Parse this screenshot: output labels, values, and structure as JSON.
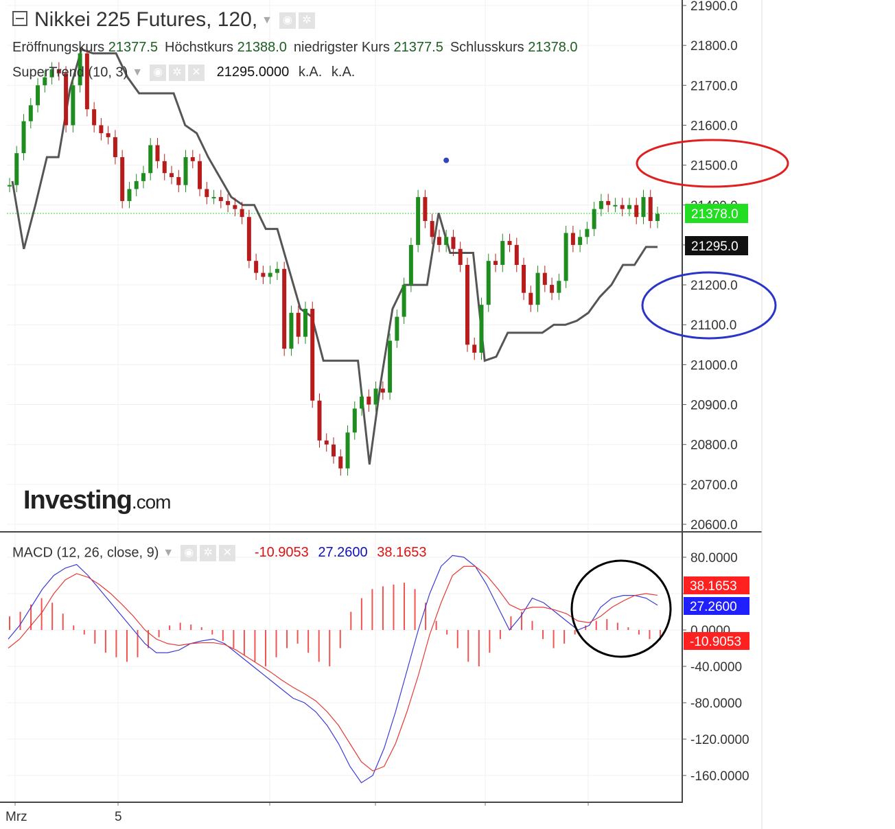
{
  "legend": {
    "title": "Nikkei 225 Futures, 120,",
    "open_label": "Eröffnungskurs",
    "open_value": "21377.5",
    "high_label": "Höchstkurs",
    "high_value": "21388.0",
    "low_label": "niedrigster Kurs",
    "low_value": "21377.5",
    "close_label": "Schlusskurs",
    "close_value": "21378.0",
    "supertrend_label": "SuperTrend (10, 3)",
    "supertrend_value": "21295.0000",
    "na1": "k.A.",
    "na2": "k.A.",
    "macd_label": "MACD (12, 26, close, 9)",
    "macd_hist": "-10.9053",
    "macd_line": "27.2600",
    "macd_signal": "38.1653"
  },
  "logo": {
    "main": "Investing",
    "suffix": ".com"
  },
  "icons": {
    "settings": "gear-icon",
    "visibility": "eye-icon",
    "remove": "close-icon",
    "menu": "chevron-down-icon"
  },
  "colors": {
    "up": "#1e8c1e",
    "down": "#b71c1c",
    "supertrend": "#555555",
    "macd": "#3b3bd6",
    "signal": "#e53935",
    "hist": "#ef5350",
    "last": "#22dd22"
  },
  "chart_data": [
    {
      "type": "candlestick",
      "title": "Nikkei 225 Futures, 120,",
      "ylim": [
        20600,
        21900
      ],
      "y_ticks": [
        20600,
        20700,
        20800,
        20900,
        21000,
        21100,
        21200,
        21300,
        21400,
        21500,
        21600,
        21700,
        21800,
        21900
      ],
      "x_tick_labels": [
        {
          "label": "Mrz",
          "index": 1
        },
        {
          "label": "5",
          "index": 23
        }
      ],
      "last_price": "21378.0",
      "supertrend_last": "21295.0",
      "candles_close": [
        21450,
        21530,
        21610,
        21650,
        21700,
        21720,
        21740,
        21730,
        21600,
        21700,
        21780,
        21640,
        21600,
        21580,
        21570,
        21520,
        21410,
        21440,
        21460,
        21480,
        21550,
        21510,
        21480,
        21470,
        21450,
        21520,
        21510,
        21440,
        21420,
        21420,
        21410,
        21400,
        21390,
        21370,
        21260,
        21230,
        21220,
        21230,
        21240,
        21040,
        21130,
        21070,
        21140,
        20910,
        20810,
        20800,
        20770,
        20740,
        20830,
        20890,
        20920,
        20900,
        20940,
        20930,
        21060,
        21120,
        21200,
        21300,
        21420,
        21360,
        21320,
        21300,
        21320,
        21290,
        21250,
        21050,
        21030,
        21150,
        21260,
        21250,
        21310,
        21300,
        21250,
        21180,
        21150,
        21230,
        21200,
        21180,
        21210,
        21330,
        21300,
        21320,
        21340,
        21390,
        21410,
        21400,
        21400,
        21390,
        21400,
        21370,
        21420,
        21360,
        21378
      ],
      "supertrend": [
        21460,
        21290,
        21400,
        21520,
        21520,
        21690,
        21790,
        21780,
        21780,
        21780,
        21720,
        21680,
        21680,
        21680,
        21680,
        21600,
        21580,
        21520,
        21470,
        21420,
        21400,
        21400,
        21340,
        21340,
        21240,
        21140,
        21120,
        21010,
        21010,
        21010,
        21010,
        20750,
        20960,
        21140,
        21200,
        21200,
        21200,
        21380,
        21280,
        21280,
        21280,
        21010,
        21020,
        21080,
        21080,
        21080,
        21080,
        21100,
        21100,
        21110,
        21130,
        21170,
        21200,
        21250,
        21250,
        21295,
        21295
      ],
      "supertrend_start_index": 0,
      "marker": {
        "x_index": 62,
        "y": 21512
      }
    },
    {
      "type": "line",
      "title": "MACD (12, 26, close, 9)",
      "ylim": [
        -175,
        100
      ],
      "y_ticks": [
        80,
        40,
        0,
        -40,
        -80,
        -120,
        -160
      ],
      "y_tick_labels": [
        "80.0000",
        "",
        "0.0000",
        "-40.0000",
        "-80.0000",
        "-120.0000",
        "-160.0000"
      ],
      "series": [
        {
          "name": "MACD",
          "values": [
            -10,
            5,
            25,
            45,
            60,
            68,
            72,
            60,
            45,
            30,
            15,
            0,
            -15,
            -25,
            -25,
            -22,
            -15,
            -12,
            -10,
            -15,
            -25,
            -35,
            -45,
            -55,
            -65,
            -75,
            -80,
            -90,
            -105,
            -125,
            -150,
            -168,
            -160,
            -130,
            -90,
            -45,
            0,
            40,
            70,
            82,
            80,
            70,
            50,
            25,
            0,
            15,
            35,
            30,
            20,
            10,
            0,
            5,
            25,
            35,
            38,
            38,
            35,
            27.26
          ]
        },
        {
          "name": "Signal",
          "values": [
            -20,
            -10,
            5,
            20,
            40,
            55,
            62,
            58,
            50,
            40,
            28,
            15,
            0,
            -10,
            -15,
            -17,
            -15,
            -14,
            -14,
            -16,
            -22,
            -30,
            -38,
            -46,
            -55,
            -63,
            -70,
            -78,
            -90,
            -105,
            -125,
            -145,
            -155,
            -150,
            -125,
            -90,
            -50,
            -5,
            30,
            60,
            70,
            70,
            60,
            45,
            28,
            22,
            25,
            25,
            22,
            18,
            10,
            8,
            15,
            25,
            32,
            38,
            40,
            38.17
          ]
        }
      ],
      "histogram": [
        15,
        20,
        28,
        35,
        30,
        18,
        5,
        -5,
        -15,
        -25,
        -30,
        -35,
        -30,
        -20,
        -8,
        5,
        8,
        6,
        3,
        -5,
        -12,
        -20,
        -28,
        -35,
        -40,
        -30,
        -20,
        -15,
        -25,
        -35,
        -40,
        -20,
        20,
        35,
        45,
        48,
        50,
        52,
        45,
        30,
        10,
        -5,
        -20,
        -35,
        -40,
        -25,
        -10,
        15,
        20,
        10,
        -10,
        -20,
        -15,
        -5,
        5,
        10,
        12,
        8,
        3,
        -5,
        -10,
        -10.9
      ]
    }
  ]
}
